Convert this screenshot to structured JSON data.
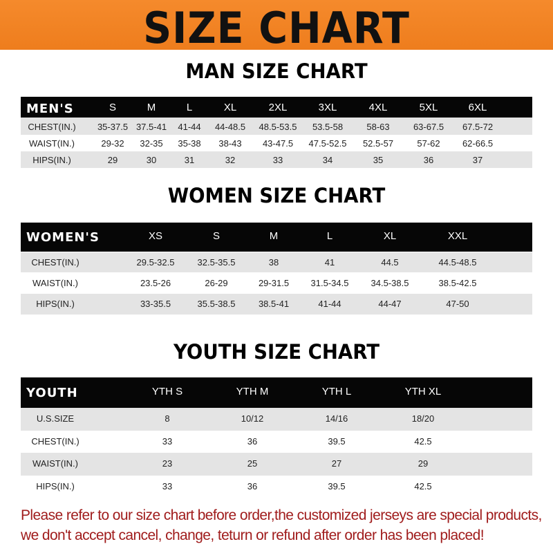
{
  "banner": {
    "title": "SIZE CHART",
    "color": "#f0841f"
  },
  "men": {
    "title": "MAN SIZE CHART",
    "header": [
      "MEN'S",
      "S",
      "M",
      "L",
      "XL",
      "2XL",
      "3XL",
      "4XL",
      "5XL",
      "6XL"
    ],
    "rows": [
      [
        "CHEST(IN.)",
        "35-37.5",
        "37.5-41",
        "41-44",
        "44-48.5",
        "48.5-53.5",
        "53.5-58",
        "58-63",
        "63-67.5",
        "67.5-72"
      ],
      [
        "WAIST(IN.)",
        "29-32",
        "32-35",
        "35-38",
        "38-43",
        "43-47.5",
        "47.5-52.5",
        "52.5-57",
        "57-62",
        "62-66.5"
      ],
      [
        "HIPS(IN.)",
        "29",
        "30",
        "31",
        "32",
        "33",
        "34",
        "35",
        "36",
        "37"
      ]
    ]
  },
  "women": {
    "title": "WOMEN SIZE CHART",
    "header": [
      "WOMEN'S",
      "XS",
      "S",
      "M",
      "L",
      "XL",
      "XXL"
    ],
    "rows": [
      [
        "CHEST(IN.)",
        "29.5-32.5",
        "32.5-35.5",
        "38",
        "41",
        "44.5",
        "44.5-48.5"
      ],
      [
        "WAIST(IN.)",
        "23.5-26",
        "26-29",
        "29-31.5",
        "31.5-34.5",
        "34.5-38.5",
        "38.5-42.5"
      ],
      [
        "HIPS(IN.)",
        "33-35.5",
        "35.5-38.5",
        "38.5-41",
        "41-44",
        "44-47",
        "47-50"
      ]
    ]
  },
  "youth": {
    "title": "YOUTH SIZE CHART",
    "header": [
      "YOUTH",
      "YTH S",
      "YTH M",
      "YTH L",
      "YTH XL"
    ],
    "rows": [
      [
        "U.S.SIZE",
        "8",
        "10/12",
        "14/16",
        "18/20"
      ],
      [
        "CHEST(IN.)",
        "33",
        "36",
        "39.5",
        "42.5"
      ],
      [
        "WAIST(IN.)",
        "23",
        "25",
        "27",
        "29"
      ],
      [
        "HIPS(IN.)",
        "33",
        "36",
        "39.5",
        "42.5"
      ]
    ]
  },
  "footer": {
    "line1": "Please refer to our size chart before order,the customized jerseys are special products,",
    "line2": "we don't accept cancel, change, teturn or refund after order has been placed!",
    "color": "#a01c1c"
  }
}
